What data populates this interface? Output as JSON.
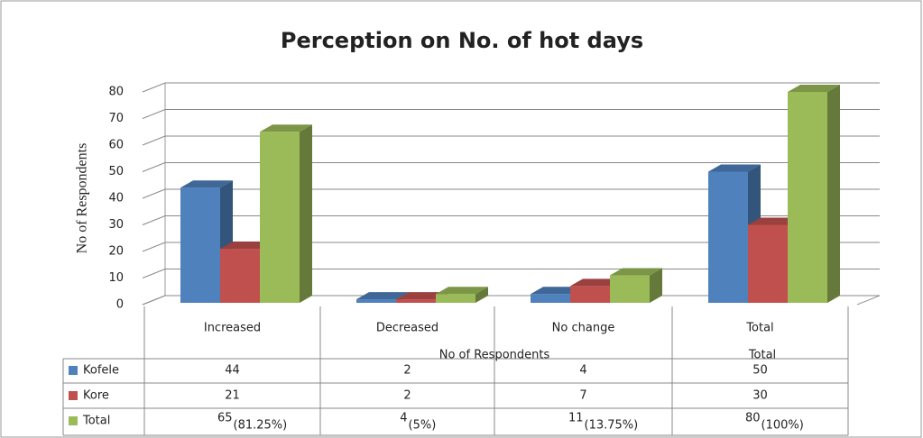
{
  "chart_data": {
    "type": "bar3d",
    "title": "Perception on No. of hot days",
    "y_label": "No of Respondents",
    "categories": [
      "Increased",
      "Decreased",
      "No change",
      "Total"
    ],
    "table_group_labels": [
      "No of Respondents",
      "Total"
    ],
    "series": [
      {
        "name": "Kofele",
        "color": "#4f81bd",
        "values": [
          44,
          2,
          4,
          50
        ]
      },
      {
        "name": "Kore",
        "color": "#c0504d",
        "values": [
          21,
          2,
          7,
          30
        ]
      },
      {
        "name": "Total",
        "color": "#9bbb59",
        "values": [
          65,
          4,
          11,
          80
        ],
        "percent_labels": [
          "(81.25%)",
          "(5%)",
          "(13.75%)",
          "(100%)"
        ]
      }
    ],
    "ylim": [
      0,
      80
    ],
    "yticks": [
      0,
      10,
      20,
      30,
      40,
      50,
      60,
      70,
      80
    ],
    "grid": true
  }
}
